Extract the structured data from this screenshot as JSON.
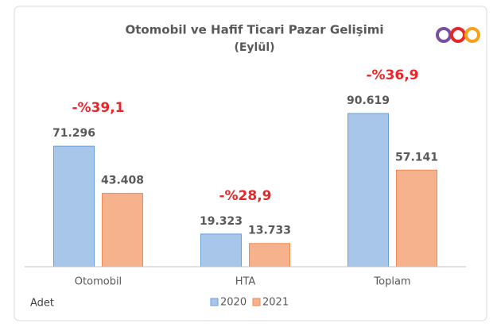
{
  "chart_data": {
    "type": "bar",
    "title": "Otomobil ve Hafif Ticari Pazar Gelişimi",
    "subtitle": "(Eylül)",
    "unit_label": "Adet",
    "categories": [
      "Otomobil",
      "HTA",
      "Toplam"
    ],
    "series": [
      {
        "name": "2020",
        "color": "#a7c6e9",
        "values": [
          71296,
          19323,
          90619
        ],
        "value_labels": [
          "71.296",
          "19.323",
          "90.619"
        ]
      },
      {
        "name": "2021",
        "color": "#f5b28c",
        "values": [
          43408,
          13733,
          57141
        ],
        "value_labels": [
          "43.408",
          "13.733",
          "57.141"
        ]
      }
    ],
    "annotations": [
      "-%39,1",
      "-%28,9",
      "-%36,9"
    ],
    "annotation_color": "#e8262a",
    "ylim": [
      0,
      100000
    ]
  }
}
